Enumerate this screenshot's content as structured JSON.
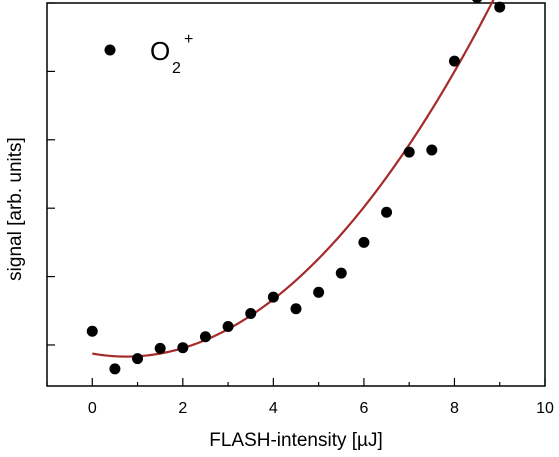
{
  "chart_data": {
    "type": "scatter",
    "xlabel": "FLASH-intensity [µJ]",
    "ylabel": "signal [arb. units]",
    "xlim": [
      -1,
      10
    ],
    "ylim": [
      -0.6,
      5
    ],
    "x_ticks": [
      0,
      2,
      4,
      6,
      8,
      10
    ],
    "x_tick_labels": [
      "0",
      "2",
      "4",
      "6",
      "8",
      "10"
    ],
    "y_ticks": [
      0,
      1,
      2,
      3,
      4,
      5
    ],
    "y_tick_labels_shown": false,
    "grid": false,
    "legend": {
      "position": "top-left",
      "marker": "filled-circle",
      "label_main": "O",
      "label_subscript": "2",
      "label_superscript": "+"
    },
    "colors": {
      "points": "#000000",
      "fit": "#a52a2a"
    },
    "series": [
      {
        "kind": "points",
        "x": [
          0,
          0.5,
          1,
          1.5,
          2,
          2.5,
          3,
          3.5,
          4,
          4.5,
          5,
          5.5,
          6,
          6.5,
          7,
          7.5,
          8,
          8.5,
          9
        ],
        "y": [
          0.2,
          -0.35,
          -0.2,
          -0.05,
          -0.04,
          0.12,
          0.27,
          0.46,
          0.7,
          0.53,
          0.77,
          1.05,
          1.5,
          1.94,
          2.82,
          2.85,
          4.15,
          5.08,
          4.94
        ]
      },
      {
        "kind": "fit",
        "shape": "quadratic",
        "vertex": [
          0.75,
          -0.17
        ],
        "coefficient": 0.0793,
        "x_range": [
          0,
          9.25
        ]
      }
    ]
  }
}
